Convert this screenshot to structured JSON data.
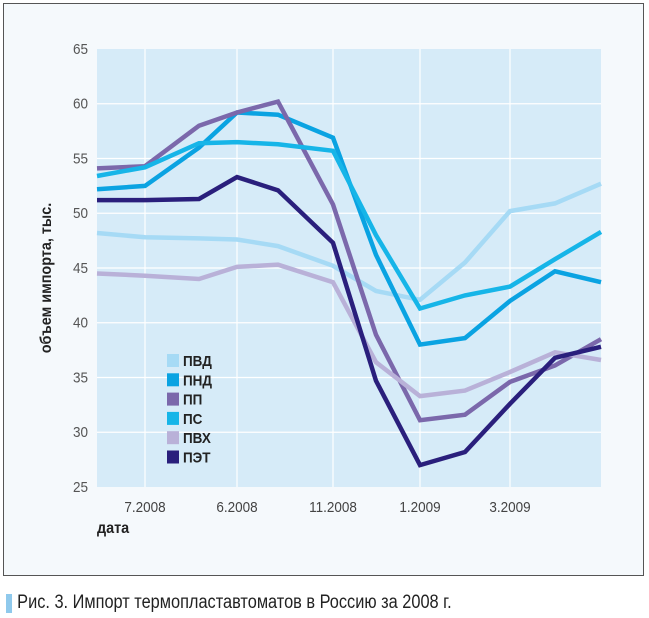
{
  "chart_data": {
    "type": "line",
    "ylabel": "объем импорта, тыс.",
    "xlabel": "дата",
    "ylim": [
      25,
      65
    ],
    "yticks": [
      25,
      30,
      35,
      40,
      45,
      50,
      55,
      60,
      65
    ],
    "categories": [
      "",
      "7.2008",
      "",
      "6.2008",
      "",
      "11.2008",
      "",
      "1.2009",
      "",
      "3.2009",
      "",
      ""
    ],
    "grid": true,
    "legend_position": "bottom-left inside",
    "background_color": "#d6ebf8",
    "series": [
      {
        "name": "ПВД",
        "color": "#a6daf5",
        "values": [
          48.2,
          47.8,
          47.7,
          47.6,
          47.0,
          45.2,
          42.9,
          42.1,
          45.5,
          50.2,
          50.9,
          52.7
        ]
      },
      {
        "name": "ПНД",
        "color": "#0aa3e2",
        "values": [
          52.2,
          52.5,
          56.0,
          59.2,
          59.0,
          56.9,
          46.2,
          38.0,
          38.6,
          42.0,
          44.7,
          43.7
        ]
      },
      {
        "name": "ПП",
        "color": "#7b68ab",
        "values": [
          54.1,
          54.3,
          58.0,
          59.2,
          60.2,
          50.8,
          38.9,
          31.1,
          31.6,
          34.6,
          36.1,
          38.5
        ]
      },
      {
        "name": "ПС",
        "color": "#16b5e8",
        "values": [
          53.4,
          54.2,
          56.4,
          56.5,
          56.3,
          55.7,
          48.0,
          41.3,
          42.5,
          43.3,
          45.8,
          48.3
        ]
      },
      {
        "name": "ПВХ",
        "color": "#b9b1d8",
        "values": [
          44.5,
          44.3,
          44.0,
          45.1,
          45.3,
          43.7,
          36.4,
          33.3,
          33.8,
          35.5,
          37.3,
          36.6
        ]
      },
      {
        "name": "ПЭТ",
        "color": "#2a1f7c",
        "values": [
          51.2,
          51.2,
          51.3,
          53.3,
          52.1,
          47.3,
          34.7,
          27.0,
          28.2,
          32.6,
          36.8,
          37.8
        ]
      }
    ]
  },
  "caption": "Рис. 3. Импорт термопластавтоматов в Россию за 2008 г."
}
